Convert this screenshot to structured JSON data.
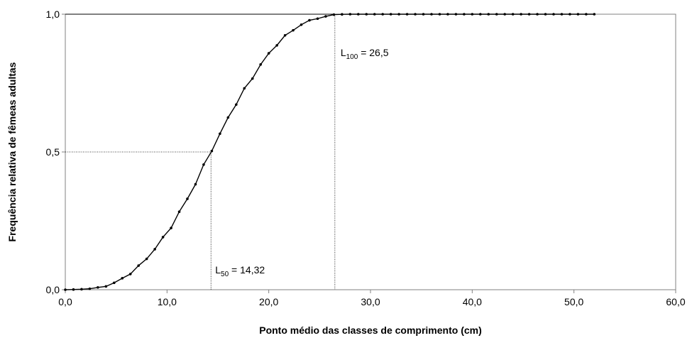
{
  "chart_data": {
    "type": "line",
    "xlabel": "Ponto médio das classes de comprimento (cm)",
    "ylabel": "Frequência relativa de fêmeas adultas",
    "xlim": [
      0,
      60
    ],
    "ylim": [
      0,
      1
    ],
    "x_ticks": [
      "0,0",
      "10,0",
      "20,0",
      "30,0",
      "40,0",
      "50,0",
      "60,0"
    ],
    "y_ticks": [
      "0,0",
      "0,5",
      "1,0"
    ],
    "grid": false,
    "curve": {
      "x_start": 0,
      "x_end": 52,
      "x_step": 0.8,
      "y_at_x": [
        [
          0,
          0.0
        ],
        [
          2,
          0.002
        ],
        [
          4,
          0.012
        ],
        [
          6,
          0.047
        ],
        [
          8,
          0.112
        ],
        [
          10,
          0.205
        ],
        [
          12,
          0.33
        ],
        [
          14.32,
          0.5
        ],
        [
          16,
          0.625
        ],
        [
          18,
          0.75
        ],
        [
          20,
          0.858
        ],
        [
          22,
          0.935
        ],
        [
          24,
          0.978
        ],
        [
          26.5,
          0.999
        ],
        [
          28,
          1.0
        ],
        [
          52,
          1.0
        ]
      ]
    },
    "annotations": {
      "l50": {
        "label_main": "L",
        "label_sub": "50",
        "label_rest": " = 14,32",
        "x": 14.32,
        "y": 0.5
      },
      "l100": {
        "label_main": "L",
        "label_sub": "100",
        "label_rest": " = 26,5",
        "x": 26.5,
        "y": 1.0
      }
    }
  }
}
